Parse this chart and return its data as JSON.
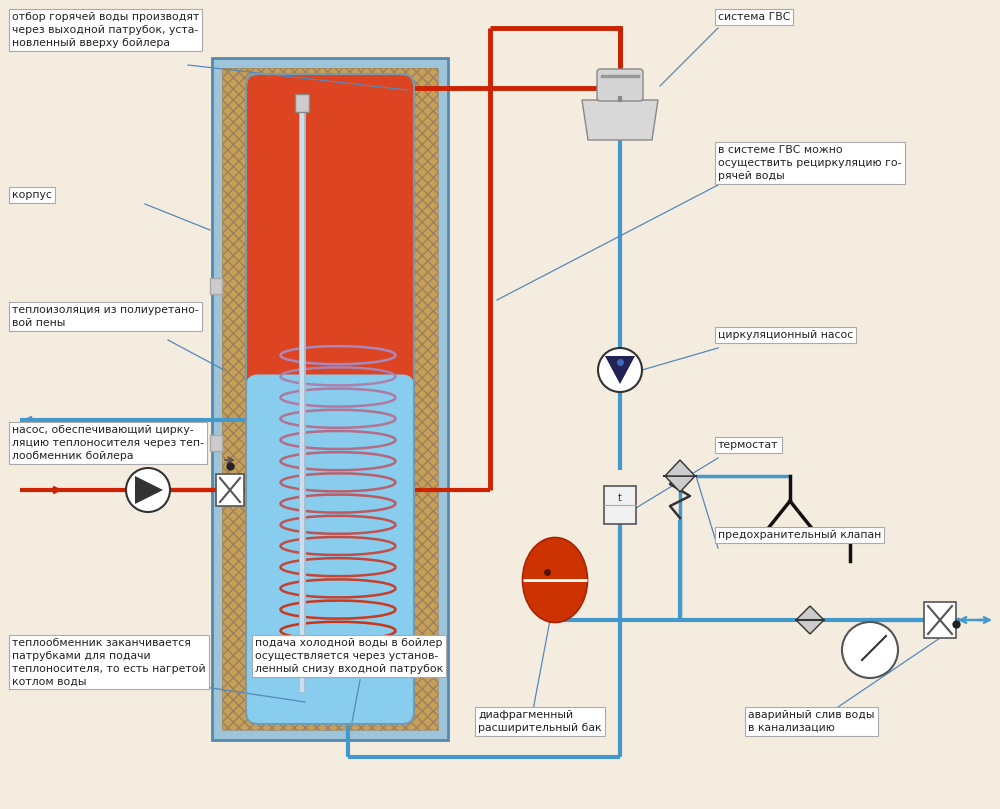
{
  "bg_color": "#f5ece0",
  "pipe_red": "#cc2200",
  "pipe_blue": "#4499cc",
  "boiler_outer_fc": "#7aaccc",
  "boiler_outer_ec": "#5588aa",
  "boiler_insul": "#c8a055",
  "boiler_hot": "#dd4422",
  "boiler_cold": "#88ccee",
  "label_box_fc": "#ffffff",
  "label_box_ec": "#aaaaaa",
  "label_text": "#222222",
  "ann_color": "#5588bb",
  "labels": {
    "top_left": "отбор горячей воды производят\nчерез выходной патрубок, уста-\nновленный вверху бойлера",
    "korpus": "корпус",
    "teploiz": "теплоизоляция из полиуретано-\nвой пены",
    "nasos_circ": "насос, обеспечивающий цирку-\nляцию теплоносителя через теп-\nлообменник бойлера",
    "teploob": "теплообменник заканчивается\nпатрубками для подачи\nтеплоносителя, то есть нагретой\nкотлом воды",
    "holodnaya": "подача холодной воды в бойлер\nосуществляется через установ-\nленный снизу входной патрубок",
    "sistema_gvs": "система ГВС",
    "recirk": "в системе ГВС можно\nосуществить рециркуляцию го-\nрячей воды",
    "circ_nasos": "циркуляционный насос",
    "termostat": "термостат",
    "predohran": "предохранительный клапан",
    "diafragm": "диафрагменный\nрасширительный бак",
    "avar_sliv": "аварийный слив воды\nв канализацию"
  }
}
